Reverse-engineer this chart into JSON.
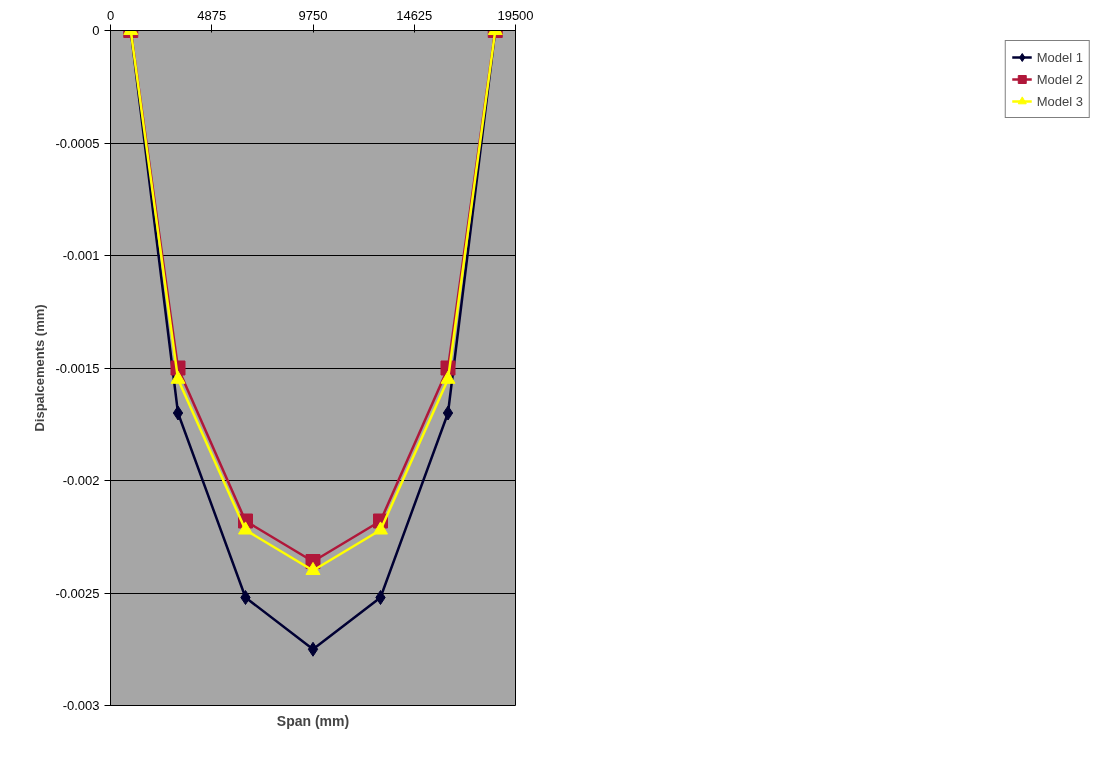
{
  "chart_data": {
    "type": "line",
    "xlabel": "Span (mm)",
    "ylabel": "Dispalcements (mm)",
    "xlim": [
      0,
      19500
    ],
    "xticks": [
      0,
      4875,
      9750,
      14625,
      19500
    ],
    "ylim": [
      -0.003,
      0
    ],
    "yticks": [
      -0.003,
      -0.0025,
      -0.002,
      -0.0015,
      -0.001,
      -0.0005,
      0
    ],
    "x": [
      975,
      3250,
      6500,
      9750,
      13000,
      16250,
      18525
    ],
    "grid": "y",
    "legend": "right",
    "series": [
      {
        "name": "Model 1",
        "color": "#000033",
        "marker": "diamond",
        "values": [
          0,
          -0.0017,
          -0.00252,
          -0.00275,
          -0.00252,
          -0.0017,
          0
        ]
      },
      {
        "name": "Model 2",
        "color": "#b0173a",
        "marker": "square",
        "values": [
          0,
          -0.0015,
          -0.00218,
          -0.00236,
          -0.00218,
          -0.0015,
          0
        ]
      },
      {
        "name": "Model 3",
        "color": "#ffff00",
        "marker": "triangle",
        "values": [
          0,
          -0.00155,
          -0.00222,
          -0.0024,
          -0.00222,
          -0.00155,
          0
        ]
      }
    ]
  }
}
